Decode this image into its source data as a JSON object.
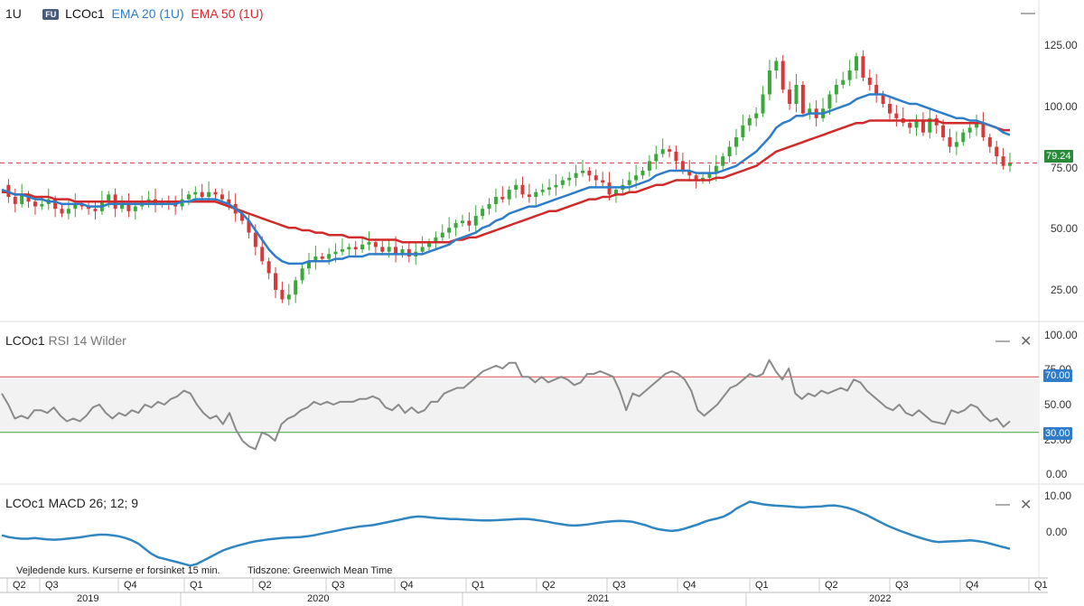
{
  "main": {
    "period": "1U",
    "symbol_badge": "FU",
    "symbol": "LCOc1",
    "ema20_label": "EMA 20 (1U)",
    "ema50_label": "EMA 50 (1U)",
    "ema20_color": "#2f7dc8",
    "ema50_color": "#d12a2a",
    "last_price": "79.24",
    "y_ticks": [
      "125.00",
      "100.00",
      "75.00",
      "50.00",
      "25.00"
    ],
    "minimize_icon": "minimize-icon"
  },
  "rsi": {
    "symbol": "LCOc1",
    "indicator": "RSI 14 Wilder",
    "y_ticks": [
      "100.00",
      "75.00",
      "50.00",
      "25.00",
      "0.00"
    ],
    "upper_level": "70.00",
    "lower_level": "30.00",
    "minimize_icon": "minimize-icon",
    "close_icon": "close-icon"
  },
  "macd": {
    "symbol": "LCOc1",
    "indicator": "MACD 26; 12; 9",
    "y_ticks": [
      "10.00",
      "0.00"
    ],
    "minimize_icon": "minimize-icon",
    "close_icon": "close-icon"
  },
  "footer": {
    "disclaimer": "Vejledende kurs. Kurserne er forsinket 15 min.",
    "timezone": "Tidszone: Greenwich Mean Time"
  },
  "x_axis": {
    "quarters": [
      "Q2",
      "Q3",
      "Q4",
      "Q1",
      "Q2",
      "Q3",
      "Q4",
      "Q1",
      "Q2",
      "Q3",
      "Q4",
      "Q1",
      "Q2",
      "Q3",
      "Q4",
      "Q1"
    ],
    "years": [
      "2019",
      "2020",
      "2021",
      "2022"
    ]
  },
  "chart_data": [
    {
      "type": "candlestick",
      "title": "LCOc1",
      "ylim": [
        15,
        140
      ],
      "series": [
        {
          "name": "LCOc1",
          "values": [
            70,
            65,
            62,
            66,
            63,
            61,
            62,
            64,
            60,
            58,
            60,
            62,
            61,
            60,
            59,
            63,
            66,
            60,
            62,
            59,
            61,
            63,
            64,
            62,
            63,
            62,
            61,
            64,
            66,
            67,
            65,
            67,
            66,
            64,
            62,
            58,
            55,
            50,
            44,
            38,
            33,
            26,
            22,
            24,
            30,
            35,
            38,
            40,
            39,
            41,
            42,
            43,
            44,
            43,
            45,
            46,
            44,
            42,
            44,
            41,
            43,
            40,
            42,
            44,
            46,
            48,
            50,
            52,
            54,
            55,
            53,
            57,
            60,
            62,
            65,
            64,
            68,
            70,
            66,
            65,
            67,
            68,
            69,
            70,
            72,
            73,
            75,
            76,
            74,
            72,
            71,
            66,
            68,
            70,
            72,
            74,
            76,
            80,
            83,
            85,
            84,
            80,
            76,
            74,
            72,
            73,
            75,
            78,
            82,
            86,
            90,
            95,
            98,
            100,
            108,
            118,
            122,
            110,
            104,
            112,
            100,
            102,
            98,
            102,
            108,
            112,
            114,
            118,
            124,
            115,
            112,
            108,
            104,
            100,
            98,
            96,
            94,
            97,
            92,
            98,
            95,
            90,
            86,
            88,
            92,
            94,
            96,
            90,
            86,
            82,
            78,
            79
          ]
        },
        {
          "name": "EMA 20 (1U)",
          "values": [
            68,
            67,
            66,
            66,
            65,
            64,
            64,
            63,
            63,
            62,
            62,
            62,
            62,
            61,
            61,
            61,
            62,
            62,
            62,
            62,
            62,
            62,
            62,
            62,
            62,
            62,
            62,
            63,
            63,
            64,
            64,
            64,
            64,
            63,
            62,
            60,
            58,
            55,
            51,
            47,
            43,
            40,
            38,
            37,
            37,
            37,
            38,
            38,
            38,
            38,
            39,
            39,
            40,
            40,
            40,
            41,
            41,
            41,
            41,
            41,
            41,
            41,
            41,
            41,
            42,
            43,
            44,
            45,
            47,
            48,
            49,
            50,
            52,
            53,
            55,
            56,
            58,
            59,
            60,
            61,
            61,
            62,
            63,
            64,
            65,
            66,
            67,
            68,
            69,
            69,
            69,
            69,
            69,
            69,
            69,
            70,
            71,
            72,
            74,
            75,
            76,
            76,
            76,
            76,
            75,
            75,
            75,
            75,
            76,
            77,
            78,
            80,
            82,
            84,
            87,
            90,
            94,
            96,
            97,
            99,
            99,
            100,
            100,
            100,
            101,
            102,
            103,
            104,
            106,
            107,
            108,
            108,
            108,
            107,
            106,
            105,
            104,
            104,
            103,
            102,
            101,
            100,
            99,
            98,
            98,
            97,
            97,
            96,
            95,
            94,
            92,
            91
          ]
        },
        {
          "name": "EMA 50 (1U)",
          "values": [
            67,
            67,
            66,
            66,
            66,
            65,
            65,
            65,
            64,
            64,
            64,
            63,
            63,
            63,
            63,
            63,
            63,
            63,
            63,
            63,
            63,
            63,
            63,
            63,
            63,
            63,
            63,
            63,
            63,
            63,
            63,
            63,
            63,
            62,
            61,
            60,
            59,
            58,
            57,
            56,
            55,
            54,
            53,
            52,
            52,
            51,
            51,
            50,
            50,
            49,
            49,
            49,
            48,
            48,
            48,
            47,
            47,
            47,
            47,
            47,
            46,
            46,
            46,
            46,
            46,
            46,
            46,
            46,
            47,
            47,
            48,
            48,
            49,
            50,
            51,
            52,
            53,
            54,
            55,
            56,
            57,
            58,
            59,
            59,
            60,
            61,
            62,
            63,
            64,
            64,
            65,
            65,
            66,
            66,
            67,
            67,
            68,
            69,
            70,
            70,
            71,
            72,
            72,
            72,
            72,
            72,
            72,
            73,
            73,
            74,
            75,
            76,
            77,
            78,
            80,
            82,
            84,
            85,
            86,
            87,
            88,
            89,
            90,
            91,
            92,
            93,
            94,
            95,
            96,
            96,
            97,
            97,
            97,
            97,
            97,
            97,
            97,
            97,
            97,
            97,
            97,
            96,
            96,
            96,
            96,
            96,
            96,
            96,
            95,
            94,
            93,
            93
          ]
        }
      ]
    },
    {
      "type": "line",
      "title": "RSI 14 Wilder",
      "ylim": [
        0,
        100
      ],
      "reference_lines": [
        70,
        30
      ],
      "series": [
        {
          "name": "LCOc1",
          "values": [
            58,
            50,
            40,
            42,
            40,
            46,
            46,
            44,
            48,
            42,
            38,
            40,
            38,
            42,
            48,
            50,
            44,
            40,
            44,
            42,
            46,
            44,
            50,
            48,
            52,
            50,
            54,
            56,
            60,
            58,
            50,
            44,
            40,
            42,
            36,
            44,
            32,
            24,
            20,
            18,
            30,
            28,
            24,
            36,
            40,
            42,
            46,
            48,
            52,
            50,
            52,
            50,
            52,
            52,
            52,
            54,
            54,
            56,
            54,
            48,
            46,
            50,
            44,
            48,
            44,
            46,
            52,
            52,
            58,
            60,
            62,
            62,
            66,
            70,
            74,
            76,
            78,
            76,
            80,
            80,
            70,
            70,
            66,
            70,
            66,
            68,
            70,
            68,
            64,
            66,
            72,
            72,
            74,
            72,
            70,
            60,
            46,
            58,
            56,
            60,
            64,
            68,
            72,
            74,
            72,
            68,
            60,
            46,
            42,
            46,
            50,
            56,
            62,
            64,
            68,
            72,
            70,
            72,
            82,
            74,
            68,
            76,
            58,
            54,
            58,
            56,
            60,
            58,
            60,
            62,
            60,
            68,
            66,
            60,
            56,
            52,
            48,
            46,
            50,
            44,
            42,
            46,
            42,
            38,
            37,
            36,
            46,
            44,
            46,
            50,
            48,
            42,
            38,
            40,
            34,
            38
          ]
        }
      ]
    },
    {
      "type": "line",
      "title": "MACD 26; 12; 9",
      "ylim": [
        -10,
        12
      ],
      "series": [
        {
          "name": "LCOc1",
          "values": [
            0,
            -0.5,
            -0.8,
            -1,
            -1,
            -0.8,
            -1,
            -1.2,
            -1.3,
            -1.2,
            -1,
            -0.8,
            -0.6,
            -0.3,
            0,
            0.2,
            0.2,
            0,
            -0.3,
            -0.8,
            -1.5,
            -2.5,
            -4,
            -5.5,
            -6.5,
            -7,
            -7.5,
            -8,
            -8.5,
            -9,
            -8.5,
            -7.5,
            -6.5,
            -5.5,
            -4.5,
            -3.8,
            -3.2,
            -2.7,
            -2.2,
            -1.8,
            -1.5,
            -1.2,
            -1,
            -0.8,
            -0.7,
            -0.6,
            -0.5,
            -0.3,
            0,
            0.4,
            0.8,
            1.2,
            1.6,
            2,
            2.3,
            2.6,
            2.8,
            3,
            3.4,
            3.8,
            4.2,
            4.6,
            5,
            5.4,
            5.6,
            5.5,
            5.3,
            5.1,
            5,
            4.8,
            4.8,
            4.7,
            4.6,
            4.5,
            4.4,
            4.4,
            4.5,
            4.6,
            4.7,
            4.8,
            4.9,
            4.8,
            4.6,
            4.3,
            4,
            3.6,
            3.3,
            3,
            2.9,
            3,
            3.2,
            3.5,
            3.8,
            4,
            4.2,
            4.3,
            4.2,
            4,
            3.5,
            3,
            2.3,
            1.8,
            1.5,
            1.3,
            1.5,
            2,
            2.6,
            3.2,
            4,
            4.6,
            5,
            5.6,
            6.6,
            8,
            9,
            10,
            9.6,
            9.2,
            9,
            8.8,
            8.7,
            8.6,
            8.4,
            8.3,
            8.4,
            8.5,
            8.6,
            8.8,
            8.9,
            8.6,
            8.2,
            7.6,
            6.8,
            6,
            5,
            4,
            3,
            2.2,
            1.4,
            0.7,
            0,
            -0.6,
            -1.2,
            -1.7,
            -2,
            -1.9,
            -1.8,
            -1.7,
            -1.6,
            -1.5,
            -1.7,
            -2,
            -2.5,
            -3,
            -3.5,
            -4
          ]
        }
      ]
    }
  ]
}
